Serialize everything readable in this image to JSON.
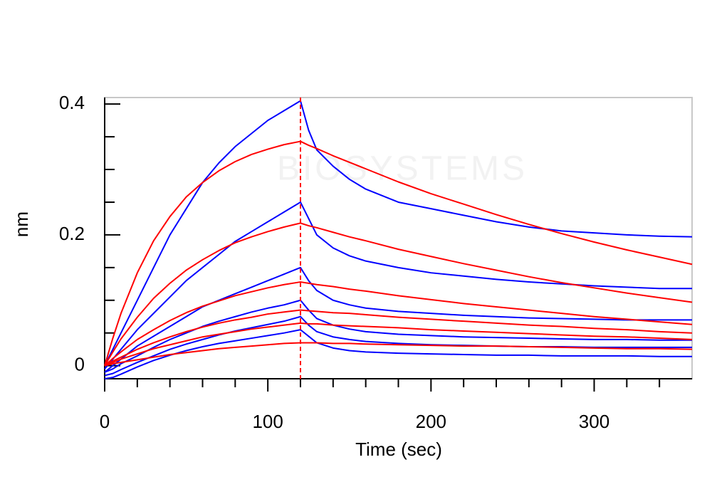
{
  "chart_data": {
    "type": "line",
    "watermark": "BIOSYSTEMS",
    "xlabel": "Time (sec)",
    "ylabel": "nm",
    "xlim": [
      0,
      360
    ],
    "ylim": [
      -0.02,
      0.41
    ],
    "xticks": [
      0,
      100,
      200,
      300
    ],
    "yticks": [
      0,
      0.2,
      0.4
    ],
    "xminorticks": [
      20,
      40,
      60,
      80,
      120,
      140,
      160,
      180,
      220,
      240,
      260,
      280,
      320,
      340
    ],
    "yminorticks": [
      0.05,
      0.1,
      0.15,
      0.25,
      0.3,
      0.35
    ],
    "vline": 120,
    "vline_color": "#ff0000",
    "x": [
      0,
      5,
      10,
      20,
      30,
      40,
      50,
      60,
      70,
      80,
      90,
      100,
      110,
      120,
      125,
      130,
      140,
      150,
      160,
      180,
      200,
      220,
      240,
      260,
      280,
      300,
      320,
      340,
      360
    ],
    "series": [
      {
        "color": "#0000ff",
        "values": [
          0,
          0.025,
          0.05,
          0.1,
          0.15,
          0.2,
          0.24,
          0.28,
          0.31,
          0.335,
          0.355,
          0.375,
          0.39,
          0.405,
          0.36,
          0.33,
          0.305,
          0.285,
          0.27,
          0.25,
          0.24,
          0.23,
          0.22,
          0.212,
          0.206,
          0.203,
          0.2,
          0.198,
          0.197
        ]
      },
      {
        "color": "#0000ff",
        "values": [
          -0.005,
          0.01,
          0.025,
          0.055,
          0.08,
          0.105,
          0.13,
          0.15,
          0.17,
          0.19,
          0.205,
          0.22,
          0.235,
          0.25,
          0.225,
          0.2,
          0.18,
          0.168,
          0.16,
          0.15,
          0.142,
          0.137,
          0.132,
          0.128,
          0.125,
          0.122,
          0.12,
          0.118,
          0.118
        ]
      },
      {
        "color": "#0000ff",
        "values": [
          -0.01,
          0,
          0.01,
          0.03,
          0.045,
          0.06,
          0.075,
          0.09,
          0.1,
          0.11,
          0.12,
          0.13,
          0.14,
          0.15,
          0.13,
          0.115,
          0.1,
          0.093,
          0.088,
          0.083,
          0.08,
          0.077,
          0.075,
          0.073,
          0.072,
          0.071,
          0.07,
          0.07,
          0.07
        ]
      },
      {
        "color": "#0000ff",
        "values": [
          -0.01,
          -0.005,
          0.003,
          0.015,
          0.028,
          0.04,
          0.05,
          0.06,
          0.068,
          0.075,
          0.082,
          0.088,
          0.093,
          0.1,
          0.085,
          0.072,
          0.062,
          0.056,
          0.052,
          0.048,
          0.046,
          0.044,
          0.043,
          0.042,
          0.041,
          0.04,
          0.04,
          0.039,
          0.039
        ]
      },
      {
        "color": "#0000ff",
        "values": [
          -0.015,
          -0.012,
          -0.006,
          0.005,
          0.015,
          0.025,
          0.033,
          0.04,
          0.047,
          0.053,
          0.058,
          0.063,
          0.068,
          0.075,
          0.062,
          0.052,
          0.044,
          0.04,
          0.037,
          0.034,
          0.032,
          0.031,
          0.03,
          0.029,
          0.029,
          0.028,
          0.028,
          0.028,
          0.028
        ]
      },
      {
        "color": "#0000ff",
        "values": [
          -0.02,
          -0.018,
          -0.013,
          -0.002,
          0.008,
          0.016,
          0.023,
          0.029,
          0.034,
          0.038,
          0.042,
          0.046,
          0.05,
          0.055,
          0.045,
          0.035,
          0.027,
          0.023,
          0.021,
          0.019,
          0.018,
          0.017,
          0.016,
          0.016,
          0.015,
          0.015,
          0.015,
          0.014,
          0.014
        ]
      },
      {
        "color": "#ff0000",
        "values": [
          0,
          0.042,
          0.08,
          0.142,
          0.191,
          0.228,
          0.258,
          0.28,
          0.298,
          0.312,
          0.323,
          0.331,
          0.338,
          0.343,
          0.337,
          0.332,
          0.321,
          0.311,
          0.301,
          0.281,
          0.263,
          0.247,
          0.231,
          0.216,
          0.202,
          0.189,
          0.177,
          0.166,
          0.155
        ]
      },
      {
        "color": "#ff0000",
        "values": [
          0,
          0.021,
          0.041,
          0.074,
          0.103,
          0.126,
          0.146,
          0.162,
          0.176,
          0.188,
          0.197,
          0.205,
          0.212,
          0.218,
          0.214,
          0.211,
          0.204,
          0.197,
          0.191,
          0.178,
          0.167,
          0.156,
          0.146,
          0.136,
          0.127,
          0.119,
          0.111,
          0.104,
          0.097
        ]
      },
      {
        "color": "#ff0000",
        "values": [
          0,
          0.011,
          0.021,
          0.04,
          0.055,
          0.069,
          0.081,
          0.091,
          0.099,
          0.107,
          0.113,
          0.119,
          0.124,
          0.128,
          0.126,
          0.124,
          0.121,
          0.117,
          0.114,
          0.107,
          0.101,
          0.095,
          0.09,
          0.085,
          0.08,
          0.075,
          0.071,
          0.067,
          0.063
        ]
      },
      {
        "color": "#ff0000",
        "values": [
          0,
          0.007,
          0.013,
          0.025,
          0.035,
          0.044,
          0.052,
          0.059,
          0.065,
          0.07,
          0.074,
          0.079,
          0.082,
          0.085,
          0.084,
          0.083,
          0.081,
          0.08,
          0.078,
          0.074,
          0.071,
          0.068,
          0.065,
          0.062,
          0.06,
          0.057,
          0.055,
          0.052,
          0.05
        ]
      },
      {
        "color": "#ff0000",
        "values": [
          0,
          0.005,
          0.01,
          0.018,
          0.026,
          0.032,
          0.038,
          0.044,
          0.048,
          0.052,
          0.056,
          0.059,
          0.062,
          0.065,
          0.064,
          0.064,
          0.062,
          0.061,
          0.06,
          0.058,
          0.055,
          0.053,
          0.051,
          0.049,
          0.047,
          0.045,
          0.044,
          0.042,
          0.04
        ]
      },
      {
        "color": "#ff0000",
        "values": [
          0,
          0.003,
          0.005,
          0.009,
          0.013,
          0.017,
          0.02,
          0.023,
          0.026,
          0.028,
          0.03,
          0.032,
          0.034,
          0.035,
          0.035,
          0.035,
          0.034,
          0.034,
          0.033,
          0.032,
          0.031,
          0.03,
          0.03,
          0.029,
          0.028,
          0.027,
          0.026,
          0.026,
          0.025
        ]
      }
    ]
  }
}
